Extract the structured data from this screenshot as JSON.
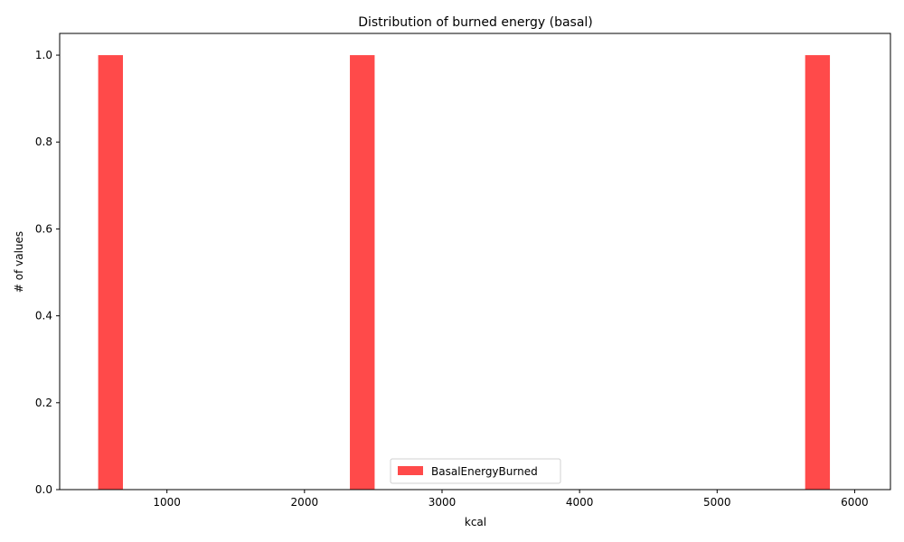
{
  "chart_data": {
    "type": "bar",
    "title": "Distribution of burned energy (basal)",
    "xlabel": "kcal",
    "ylabel": "# of values",
    "xlim": [
      220,
      6260
    ],
    "ylim": [
      0,
      1.05
    ],
    "xticks": [
      1000,
      2000,
      3000,
      4000,
      5000,
      6000
    ],
    "xtick_labels": [
      "1000",
      "2000",
      "3000",
      "4000",
      "5000",
      "6000"
    ],
    "yticks": [
      0.0,
      0.2,
      0.4,
      0.6,
      0.8,
      1.0
    ],
    "ytick_labels": [
      "0.0",
      "0.2",
      "0.4",
      "0.6",
      "0.8",
      "1.0"
    ],
    "grid": false,
    "legend_position": "bottom-center",
    "series": [
      {
        "name": "BasalEnergyBurned",
        "color": "#ff4a4a",
        "bins": [
          {
            "x0": 500,
            "x1": 680,
            "count": 1
          },
          {
            "x0": 2330,
            "x1": 2510,
            "count": 1
          },
          {
            "x0": 5640,
            "x1": 5820,
            "count": 1
          }
        ]
      }
    ]
  }
}
